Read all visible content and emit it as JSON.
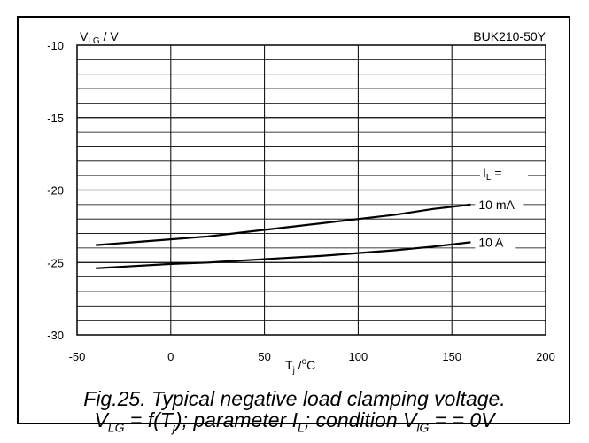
{
  "chart_data": {
    "type": "line",
    "part_number": "BUK210-50Y",
    "ylabel": {
      "main": "V",
      "sub": "LG",
      "rest": " / V"
    },
    "xlabel": {
      "main": "T",
      "sub": "j",
      "mid": " /",
      "sup": "o",
      "rest": "C"
    },
    "xlim": [
      -50,
      200
    ],
    "ylim": [
      -30,
      -10
    ],
    "xticks": [
      -50,
      0,
      50,
      100,
      150,
      200
    ],
    "yticks": [
      -10,
      -15,
      -20,
      -25,
      -30
    ],
    "grid": true,
    "legend": {
      "title": "I",
      "title_sub": "L",
      "title_suffix": " =",
      "placement": "right"
    },
    "series": [
      {
        "name": "10 mA",
        "x": [
          -40,
          -20,
          0,
          20,
          40,
          60,
          80,
          100,
          120,
          140,
          160
        ],
        "y": [
          -23.8,
          -23.6,
          -23.4,
          -23.2,
          -22.9,
          -22.6,
          -22.3,
          -22.0,
          -21.7,
          -21.3,
          -21.0
        ]
      },
      {
        "name": "10 A",
        "x": [
          -40,
          -20,
          0,
          20,
          40,
          60,
          80,
          100,
          120,
          140,
          160
        ],
        "y": [
          -25.4,
          -25.25,
          -25.1,
          -25.0,
          -24.85,
          -24.7,
          -24.55,
          -24.35,
          -24.15,
          -23.9,
          -23.6
        ]
      }
    ]
  },
  "caption": {
    "line1": "Fig.25.   Typical negative load clamping voltage.",
    "line2": {
      "p1": "V",
      "s1": "LG",
      "p2": " = f(T",
      "s2": "j",
      "p3": "); parameter I",
      "s3": "L",
      "p4": "; condition V",
      "s4": "lG",
      "p5": " = = 0V"
    }
  }
}
